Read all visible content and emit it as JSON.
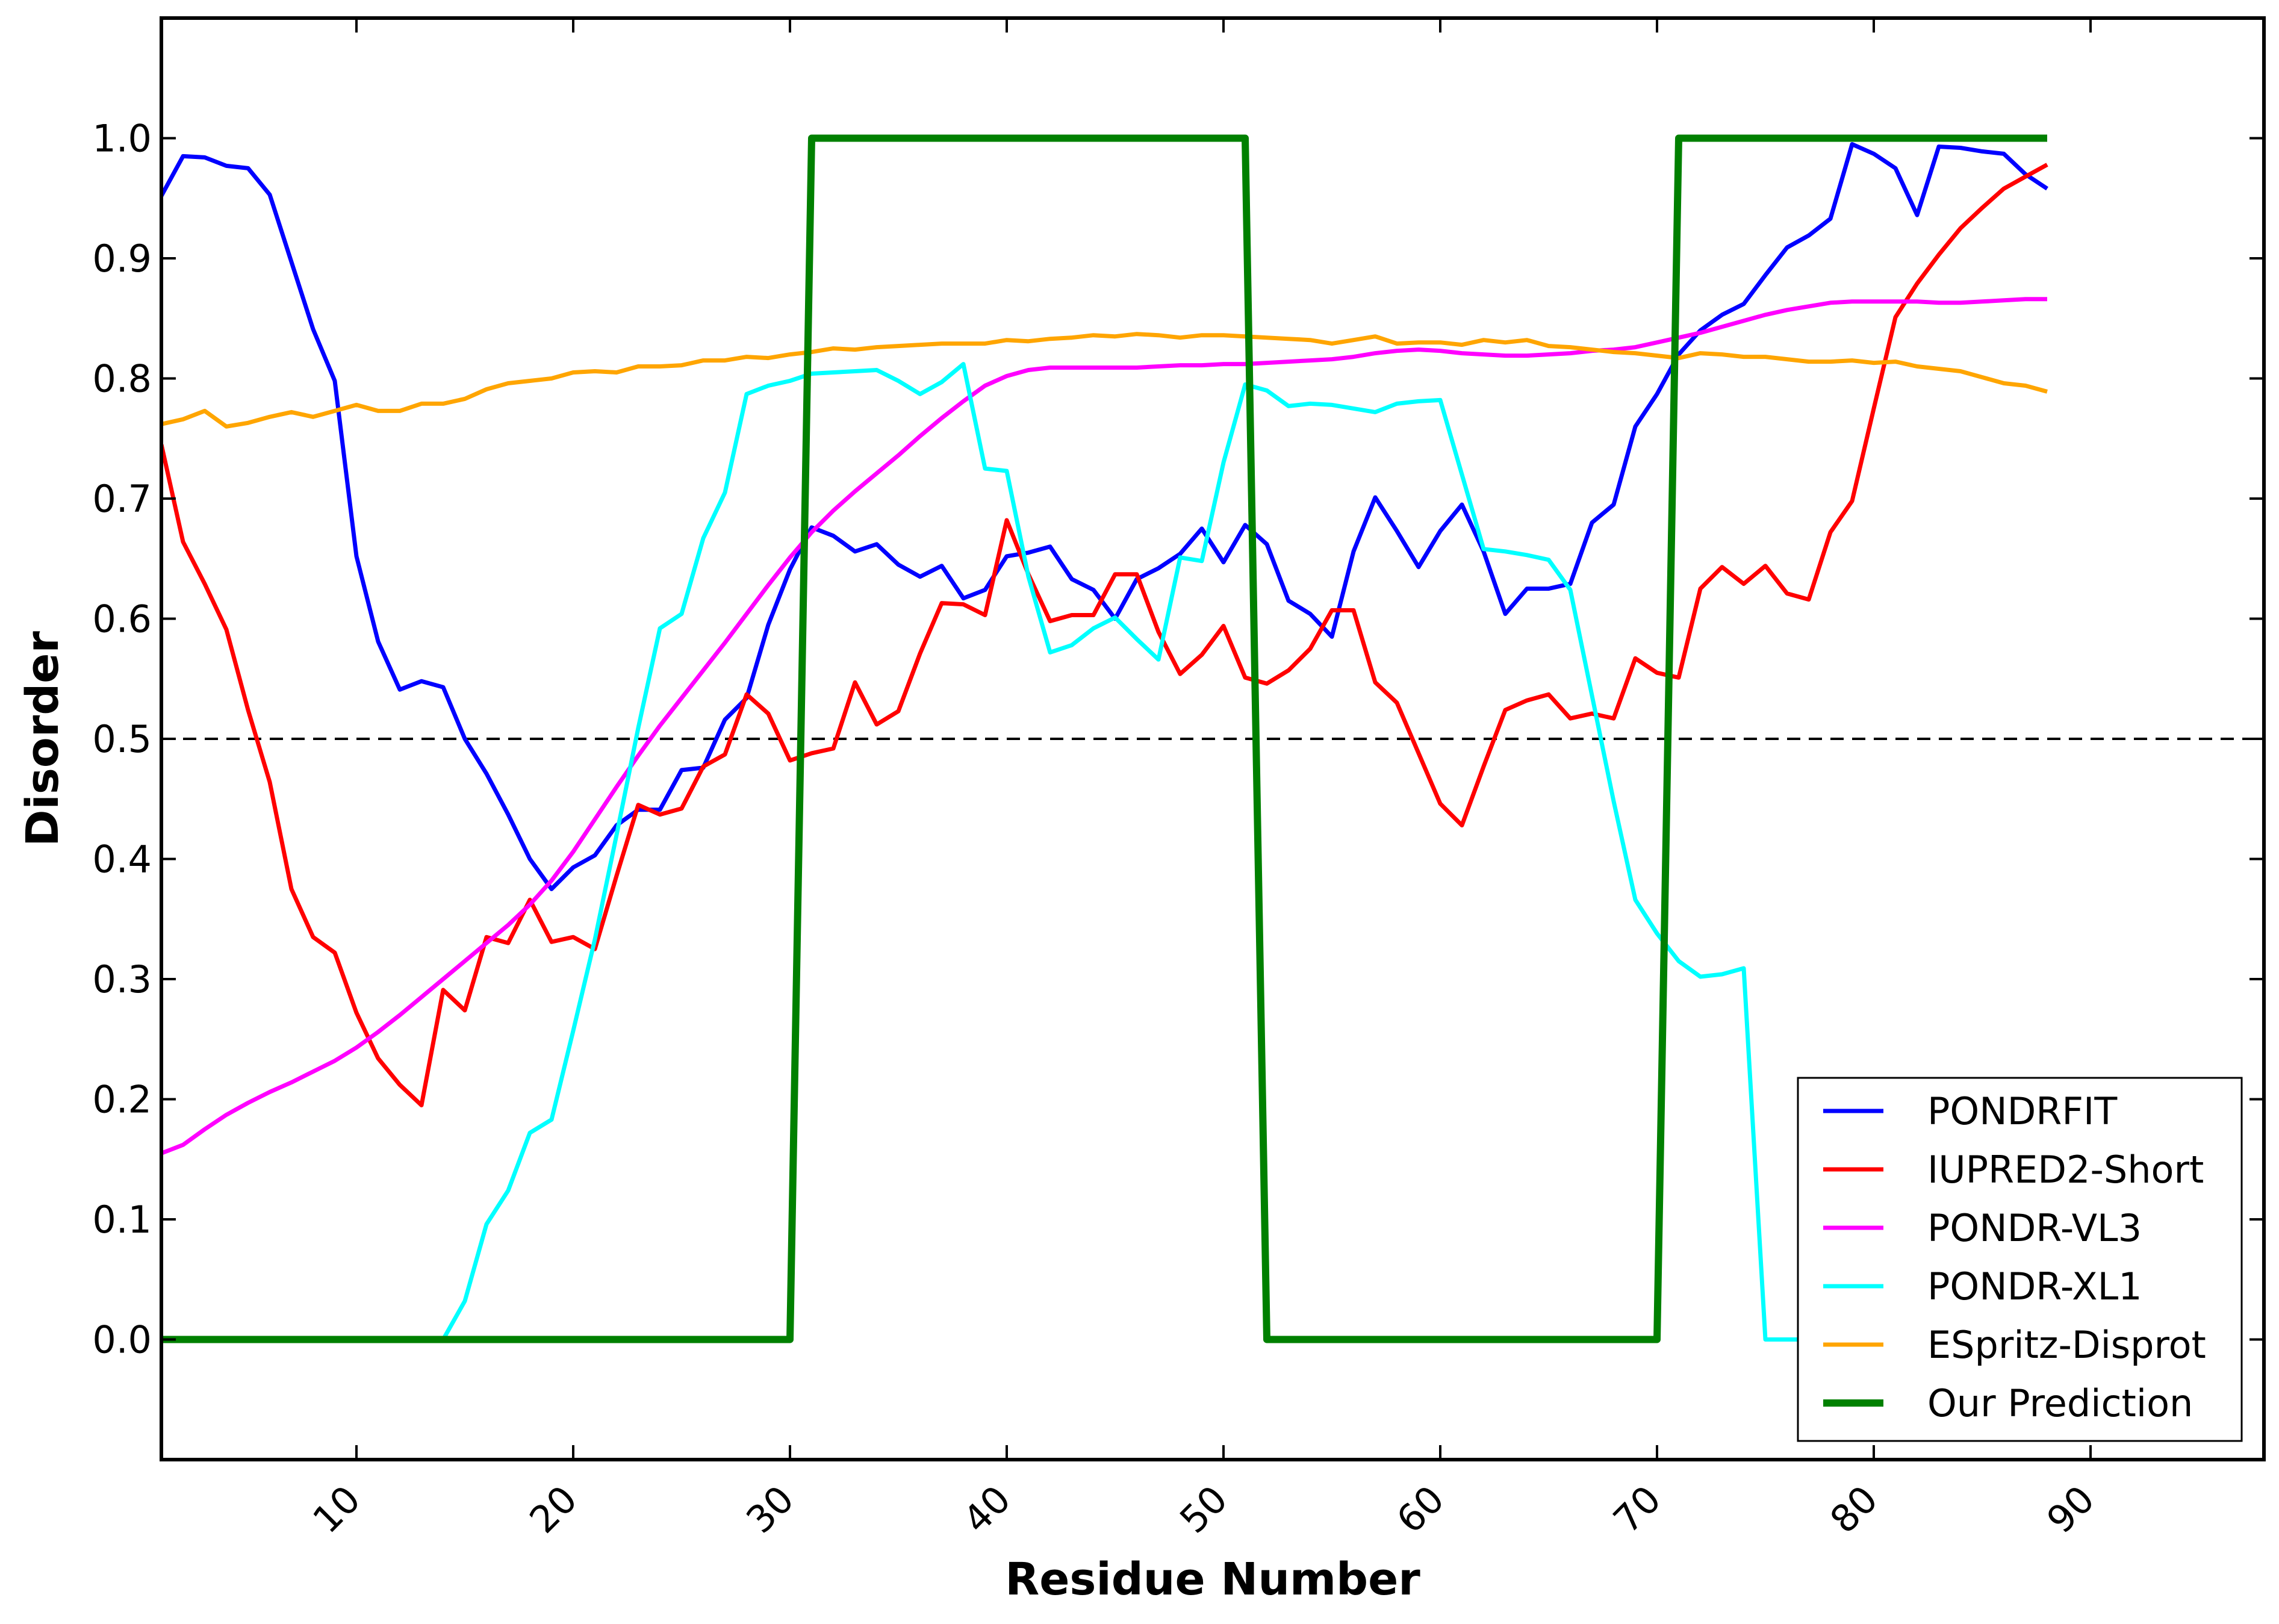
{
  "chart_data": {
    "type": "line",
    "xlabel": "Residue Number",
    "ylabel": "Disorder",
    "xlim": [
      1,
      98
    ],
    "ylim": [
      -0.1,
      1.1
    ],
    "xticks": [
      10,
      20,
      30,
      40,
      50,
      60,
      70,
      80,
      90
    ],
    "xtick_labels": [
      "10",
      "20",
      "30",
      "40",
      "50",
      "60",
      "70",
      "80",
      "90"
    ],
    "yticks": [
      0.0,
      0.1,
      0.2,
      0.3,
      0.4,
      0.5,
      0.6,
      0.7,
      0.8,
      0.9,
      1.0
    ],
    "ytick_labels": [
      "0.0",
      "0.1",
      "0.2",
      "0.3",
      "0.4",
      "0.5",
      "0.6",
      "0.7",
      "0.8",
      "0.9",
      "1.0"
    ],
    "grid": false,
    "legend_position": "bottom-right",
    "threshold": {
      "y": 0.5,
      "style": "dashed",
      "color": "#000000"
    },
    "series": [
      {
        "name": "PONDRFIT",
        "color": "#0000ff",
        "values": [
          0.952,
          0.985,
          0.984,
          0.977,
          0.975,
          0.953,
          0.897,
          0.841,
          0.798,
          0.652,
          0.581,
          0.541,
          0.548,
          0.543,
          0.5,
          0.471,
          0.437,
          0.4,
          0.375,
          0.393,
          0.403,
          0.428,
          0.441,
          0.441,
          0.474,
          0.476,
          0.516,
          0.534,
          0.595,
          0.641,
          0.676,
          0.669,
          0.656,
          0.662,
          0.645,
          0.635,
          0.644,
          0.617,
          0.624,
          0.652,
          0.655,
          0.66,
          0.633,
          0.624,
          0.6,
          0.633,
          0.642,
          0.654,
          0.675,
          0.647,
          0.678,
          0.662,
          0.615,
          0.604,
          0.585,
          0.656,
          0.701,
          0.673,
          0.643,
          0.673,
          0.695,
          0.656,
          0.604,
          0.625,
          0.625,
          0.629,
          0.68,
          0.695,
          0.76,
          0.787,
          0.82,
          0.84,
          0.853,
          0.862,
          0.886,
          0.909,
          0.919,
          0.933,
          0.995,
          0.987,
          0.975,
          0.936,
          0.993,
          0.992,
          0.989,
          0.987,
          0.97,
          0.958
        ]
      },
      {
        "name": "IUPRED2-Short",
        "color": "#ff0000",
        "values": [
          0.745,
          0.664,
          0.629,
          0.591,
          0.524,
          0.464,
          0.375,
          0.335,
          0.322,
          0.272,
          0.234,
          0.212,
          0.195,
          0.291,
          0.274,
          0.335,
          0.33,
          0.366,
          0.331,
          0.335,
          0.325,
          0.386,
          0.445,
          0.437,
          0.442,
          0.477,
          0.487,
          0.537,
          0.521,
          0.482,
          0.488,
          0.492,
          0.547,
          0.512,
          0.523,
          0.571,
          0.613,
          0.612,
          0.603,
          0.682,
          0.637,
          0.598,
          0.603,
          0.603,
          0.637,
          0.637,
          0.589,
          0.554,
          0.57,
          0.594,
          0.551,
          0.546,
          0.557,
          0.575,
          0.607,
          0.607,
          0.547,
          0.53,
          0.488,
          0.446,
          0.428,
          0.477,
          0.524,
          0.532,
          0.537,
          0.517,
          0.521,
          0.517,
          0.567,
          0.555,
          0.551,
          0.625,
          0.643,
          0.629,
          0.644,
          0.621,
          0.616,
          0.672,
          0.698,
          0.775,
          0.851,
          0.879,
          0.903,
          0.925,
          0.942,
          0.958,
          0.968,
          0.978
        ]
      },
      {
        "name": "PONDR-VL3",
        "color": "#ff00ff",
        "values": [
          0.155,
          0.162,
          0.175,
          0.187,
          0.197,
          0.206,
          0.214,
          0.223,
          0.232,
          0.243,
          0.256,
          0.27,
          0.285,
          0.3,
          0.315,
          0.33,
          0.345,
          0.362,
          0.382,
          0.406,
          0.433,
          0.46,
          0.486,
          0.511,
          0.534,
          0.557,
          0.58,
          0.604,
          0.628,
          0.651,
          0.672,
          0.69,
          0.706,
          0.721,
          0.736,
          0.752,
          0.767,
          0.781,
          0.794,
          0.802,
          0.807,
          0.809,
          0.809,
          0.809,
          0.809,
          0.809,
          0.81,
          0.811,
          0.811,
          0.812,
          0.812,
          0.813,
          0.814,
          0.815,
          0.816,
          0.818,
          0.821,
          0.823,
          0.824,
          0.823,
          0.821,
          0.82,
          0.819,
          0.819,
          0.82,
          0.821,
          0.823,
          0.824,
          0.826,
          0.83,
          0.834,
          0.838,
          0.843,
          0.848,
          0.853,
          0.857,
          0.86,
          0.863,
          0.864,
          0.864,
          0.864,
          0.864,
          0.863,
          0.863,
          0.864,
          0.865,
          0.866,
          0.866
        ]
      },
      {
        "name": "PONDR-XL1",
        "color": "#00ffff",
        "values": [
          0.0,
          0.0,
          0.0,
          0.0,
          0.0,
          0.0,
          0.0,
          0.0,
          0.0,
          0.0,
          0.0,
          0.0,
          0.0,
          0.0,
          0.032,
          0.096,
          0.124,
          0.172,
          0.183,
          0.257,
          0.333,
          0.42,
          0.509,
          0.592,
          0.604,
          0.667,
          0.705,
          0.787,
          0.794,
          0.798,
          0.804,
          0.805,
          0.806,
          0.807,
          0.798,
          0.787,
          0.797,
          0.812,
          0.725,
          0.723,
          0.635,
          0.572,
          0.578,
          0.592,
          0.601,
          0.583,
          0.566,
          0.651,
          0.648,
          0.73,
          0.795,
          0.79,
          0.777,
          0.779,
          0.778,
          0.775,
          0.772,
          0.779,
          0.781,
          0.782,
          0.72,
          0.658,
          0.656,
          0.653,
          0.649,
          0.624,
          0.536,
          0.448,
          0.366,
          0.338,
          0.315,
          0.302,
          0.304,
          0.309,
          0.0,
          0.0,
          0.0,
          0.0,
          0.0,
          0.0,
          0.0,
          0.0,
          0.0,
          0.0,
          0.0,
          0.0,
          0.0,
          0.0
        ]
      },
      {
        "name": "ESpritz-Disprot",
        "color": "#ffa500",
        "values": [
          0.762,
          0.766,
          0.773,
          0.76,
          0.763,
          0.768,
          0.772,
          0.768,
          0.773,
          0.778,
          0.773,
          0.773,
          0.779,
          0.779,
          0.783,
          0.791,
          0.796,
          0.798,
          0.8,
          0.805,
          0.806,
          0.805,
          0.81,
          0.81,
          0.811,
          0.815,
          0.815,
          0.818,
          0.817,
          0.82,
          0.822,
          0.825,
          0.824,
          0.826,
          0.827,
          0.828,
          0.829,
          0.829,
          0.829,
          0.832,
          0.831,
          0.833,
          0.834,
          0.836,
          0.835,
          0.837,
          0.836,
          0.834,
          0.836,
          0.836,
          0.835,
          0.834,
          0.833,
          0.832,
          0.829,
          0.832,
          0.835,
          0.829,
          0.83,
          0.83,
          0.828,
          0.832,
          0.83,
          0.832,
          0.827,
          0.826,
          0.824,
          0.822,
          0.821,
          0.819,
          0.817,
          0.821,
          0.82,
          0.818,
          0.818,
          0.816,
          0.814,
          0.814,
          0.815,
          0.813,
          0.814,
          0.81,
          0.808,
          0.806,
          0.801,
          0.796,
          0.794,
          0.789
        ]
      },
      {
        "name": "Our Prediction",
        "color": "#008000",
        "values": [
          0,
          0,
          0,
          0,
          0,
          0,
          0,
          0,
          0,
          0,
          0,
          0,
          0,
          0,
          0,
          0,
          0,
          0,
          0,
          0,
          0,
          0,
          0,
          0,
          0,
          0,
          0,
          0,
          0,
          0,
          1,
          1,
          1,
          1,
          1,
          1,
          1,
          1,
          1,
          1,
          1,
          1,
          1,
          1,
          1,
          1,
          1,
          1,
          1,
          1,
          1,
          0,
          0,
          0,
          0,
          0,
          0,
          0,
          0,
          0,
          0,
          0,
          0,
          0,
          0,
          0,
          0,
          0,
          0,
          0,
          1,
          1,
          1,
          1,
          1,
          1,
          1,
          1,
          1,
          1,
          1,
          1,
          1,
          1,
          1,
          1,
          1,
          1
        ]
      }
    ]
  }
}
